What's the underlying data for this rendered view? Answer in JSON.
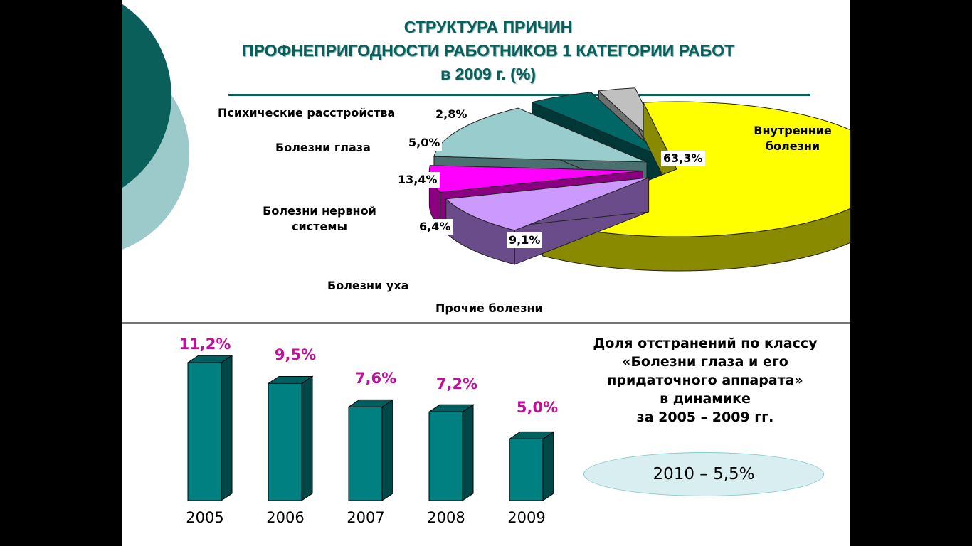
{
  "title": {
    "line1": "СТРУКТУРА ПРИЧИН",
    "line2": "ПРОФНЕПРИГОДНОСТИ РАБОТНИКОВ 1 КАТЕГОРИИ РАБОТ",
    "line3": "в 2009 г. (%)"
  },
  "chart_data": [
    {
      "type": "pie",
      "style": "3d exploded",
      "title": "СТРУКТУРА ПРИЧИН ПРОФНЕПРИГОДНОСТИ РАБОТНИКОВ 1 КАТЕГОРИИ РАБОТ в 2009 г. (%)",
      "slices": [
        {
          "label": "Внутренние болезни",
          "value": 63.3,
          "value_label": "63,3%",
          "color": "#ffff00",
          "side_color": "#8a8a00"
        },
        {
          "label": "Прочие болезни",
          "value": 9.1,
          "value_label": "9,1%",
          "color": "#cc99ff",
          "side_color": "#6a4c8a"
        },
        {
          "label": "Болезни уха",
          "value": 6.4,
          "value_label": "6,4%",
          "color": "#ff00ff",
          "side_color": "#8a0080"
        },
        {
          "label": "Болезни нервной системы",
          "value": 13.4,
          "value_label": "13,4%",
          "color": "#99cccc",
          "side_color": "#4a7070"
        },
        {
          "label": "Болезни глаза",
          "value": 5.0,
          "value_label": "5,0%",
          "color": "#006666",
          "side_color": "#003838"
        },
        {
          "label": "Психические расстройства",
          "value": 2.8,
          "value_label": "2,8%",
          "color": "#c0c0c0",
          "side_color": "#707070"
        }
      ]
    },
    {
      "type": "bar",
      "style": "3d",
      "categories": [
        "2005",
        "2006",
        "2007",
        "2008",
        "2009"
      ],
      "values": [
        11.2,
        9.5,
        7.6,
        7.2,
        5.0
      ],
      "value_labels": [
        "11,2%",
        "9,5%",
        "7,6%",
        "7,2%",
        "5,0%"
      ],
      "ylim": [
        0,
        12
      ],
      "color": "#008080",
      "label_color": "#c0109a"
    }
  ],
  "note": {
    "line1": "Доля отстранений по классу",
    "line2": "«Болезни глаза и его",
    "line3": "придаточного аппарата»",
    "line4": "в динамике",
    "line5": "за 2005 – 2009 гг."
  },
  "oval_text": "2010 – 5,5%"
}
